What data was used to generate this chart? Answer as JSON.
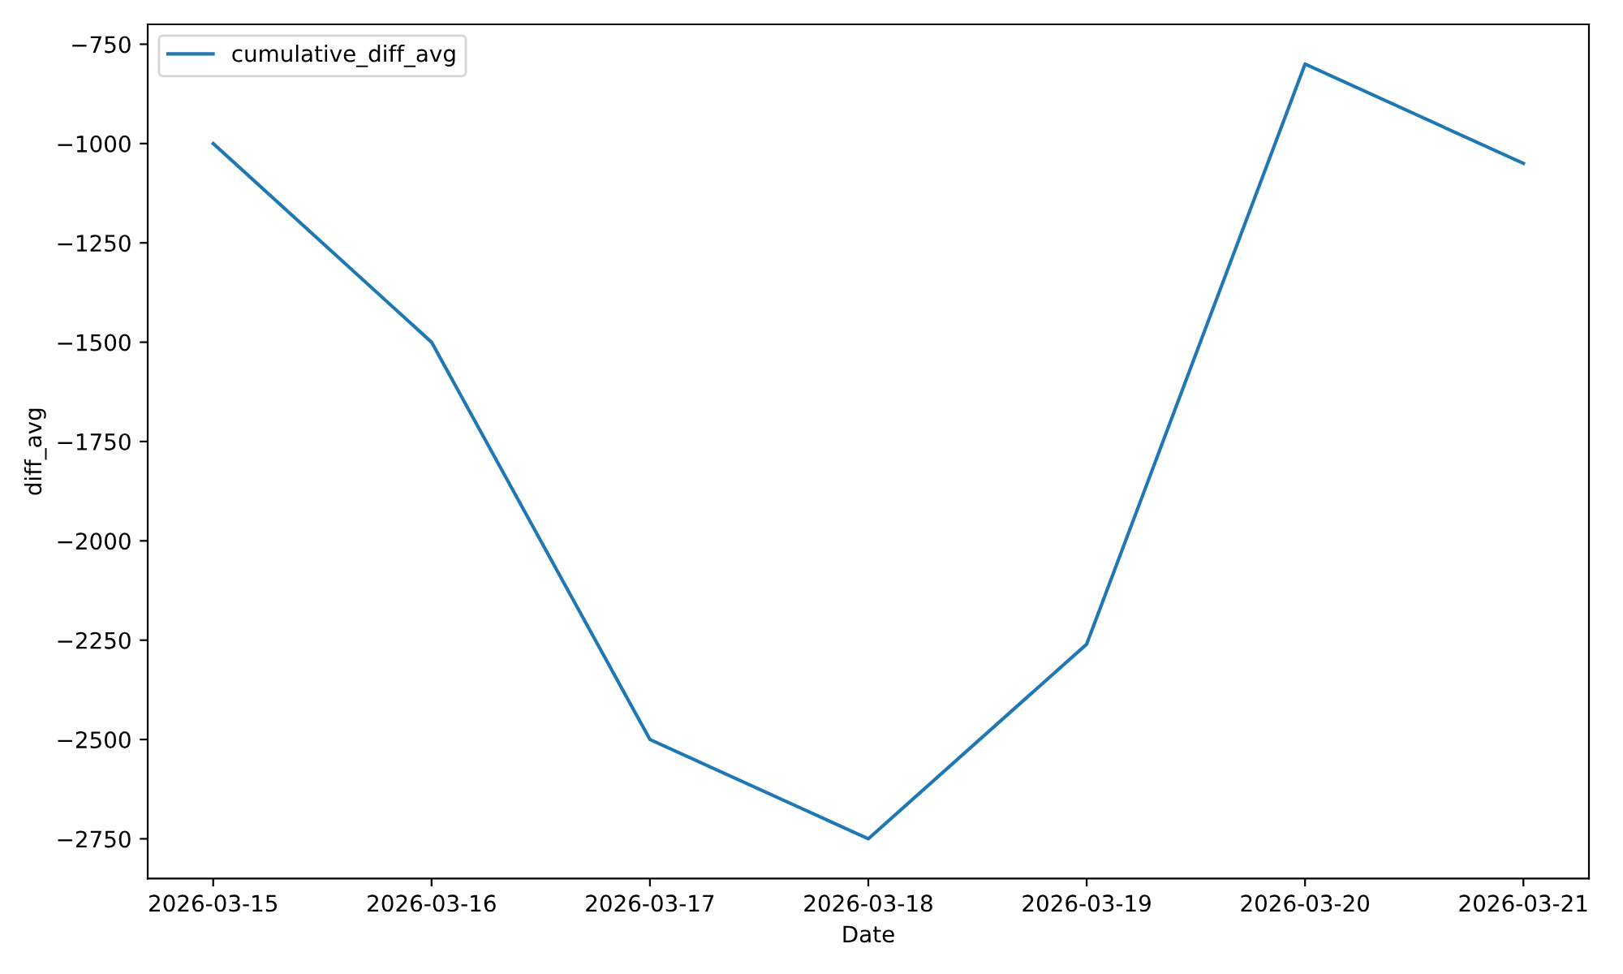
{
  "chart_data": {
    "type": "line",
    "xlabel": "Date",
    "ylabel": "diff_avg",
    "x": [
      "2026-03-15",
      "2026-03-16",
      "2026-03-17",
      "2026-03-18",
      "2026-03-19",
      "2026-03-20",
      "2026-03-21"
    ],
    "series": [
      {
        "name": "cumulative_diff_avg",
        "color": "#1f77b4",
        "values": [
          -1000,
          -1500,
          -2500,
          -2750,
          -2260,
          -800,
          -1050
        ]
      }
    ],
    "xlim": [
      "2026-03-14T16:48",
      "2026-03-21T07:12"
    ],
    "xticks": [
      "2026-03-15",
      "2026-03-16",
      "2026-03-17",
      "2026-03-18",
      "2026-03-19",
      "2026-03-20",
      "2026-03-21"
    ],
    "ylim": [
      -2850,
      -700
    ],
    "yticks": [
      {
        "value": -2750,
        "label": "−2750"
      },
      {
        "value": -2500,
        "label": "−2500"
      },
      {
        "value": -2250,
        "label": "−2250"
      },
      {
        "value": -2000,
        "label": "−2000"
      },
      {
        "value": -1750,
        "label": "−1750"
      },
      {
        "value": -1500,
        "label": "−1500"
      },
      {
        "value": -1250,
        "label": "−1250"
      },
      {
        "value": -1000,
        "label": "−1000"
      },
      {
        "value": -750,
        "label": "−750"
      }
    ],
    "grid": false,
    "legend": "top left",
    "marker": "none",
    "line_style": "solid"
  }
}
